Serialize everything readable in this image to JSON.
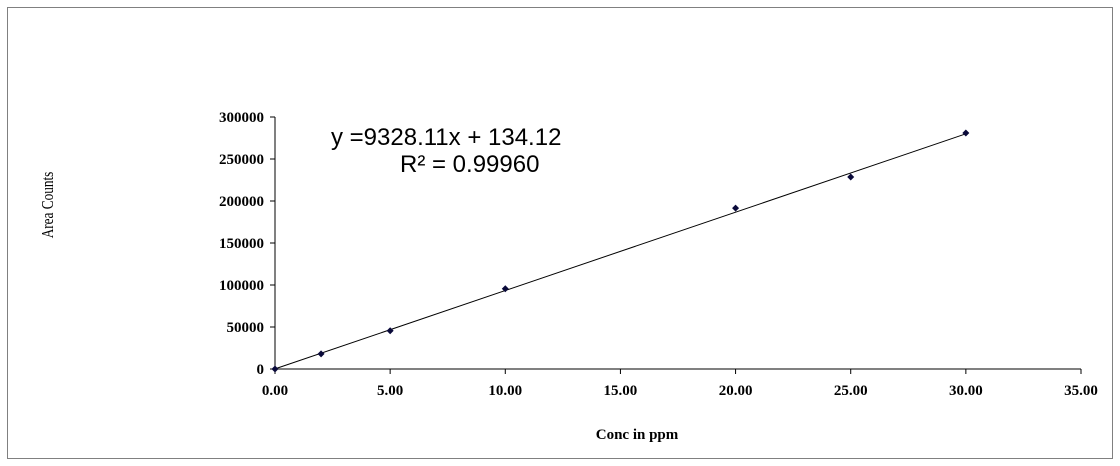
{
  "chart_data": {
    "type": "scatter",
    "title": "",
    "xlabel": "Conc in ppm",
    "ylabel": "Area Counts",
    "xlim": [
      0,
      35
    ],
    "ylim": [
      0,
      300000
    ],
    "x_ticks": [
      "0.00",
      "5.00",
      "10.00",
      "15.00",
      "20.00",
      "25.00",
      "30.00",
      "35.00"
    ],
    "y_ticks": [
      "0",
      "50000",
      "100000",
      "150000",
      "200000",
      "250000",
      "300000"
    ],
    "grid": false,
    "legend": "none",
    "series": [
      {
        "x": [
          0,
          2,
          5,
          10,
          20,
          25,
          30
        ],
        "y": [
          0,
          18000,
          45500,
          95500,
          191500,
          228500,
          281000
        ],
        "marker": "diamond",
        "color": "#0a0a3a"
      }
    ],
    "trendline": {
      "slope": 9328.11,
      "intercept": 134.12,
      "x_range": [
        0,
        30
      ],
      "color": "#000000"
    },
    "annotations": {
      "equation": "y =9328.11x + 134.12",
      "r_squared": "R² = 0.99960"
    }
  }
}
